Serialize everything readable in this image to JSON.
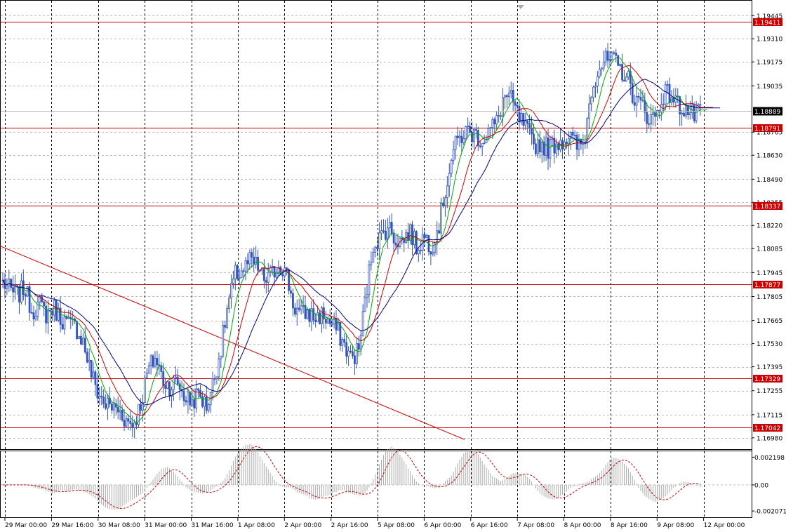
{
  "chart_data": [
    {
      "type": "candlestick",
      "panel": "price",
      "y_ticks": [
        "1.19445",
        "1.19310",
        "1.19175",
        "1.19035",
        "1.18765",
        "1.18630",
        "1.18490",
        "1.18355",
        "1.18220",
        "1.18085",
        "1.17945",
        "1.17805",
        "1.17665",
        "1.17530",
        "1.17395",
        "1.17255",
        "1.17115",
        "1.16980"
      ],
      "ylim": [
        1.1693,
        1.1952
      ],
      "x_ticks": [
        "29 Mar 00:00",
        "29 Mar 16:00",
        "30 Mar 08:00",
        "31 Mar 00:00",
        "31 Mar 16:00",
        "1 Apr 08:00",
        "2 Apr 00:00",
        "2 Apr 16:00",
        "5 Apr 08:00",
        "6 Apr 00:00",
        "6 Apr 16:00",
        "7 Apr 08:00",
        "8 Apr 00:00",
        "8 Apr 16:00",
        "9 Apr 08:00",
        "12 Apr 00:00"
      ],
      "current_price": "1.18889",
      "horizontal_levels": [
        "1.19411",
        "1.18791",
        "1.18337",
        "1.17877",
        "1.17329",
        "1.17042"
      ],
      "trendline": {
        "from": 1.181,
        "to": 1.1697
      },
      "series": [
        {
          "type": "candlestick",
          "color": "#3355bb",
          "anchors": [
            1.1789,
            1.1784,
            1.1781,
            1.1786,
            1.1772,
            1.1776,
            1.177,
            1.1774,
            1.1768,
            1.1764,
            1.1763,
            1.1755,
            1.1738,
            1.1725,
            1.1718,
            1.1716,
            1.1714,
            1.1708,
            1.1706,
            1.1718,
            1.1738,
            1.1745,
            1.1732,
            1.1728,
            1.1731,
            1.1722,
            1.1719,
            1.1724,
            1.1716,
            1.1731,
            1.175,
            1.1776,
            1.1793,
            1.1796,
            1.1801,
            1.1798,
            1.179,
            1.1793,
            1.18,
            1.1794,
            1.1775,
            1.177,
            1.1771,
            1.1768,
            1.177,
            1.1765,
            1.1761,
            1.1752,
            1.1744,
            1.175,
            1.1782,
            1.1812,
            1.1815,
            1.1822,
            1.1814,
            1.1813,
            1.1819,
            1.1809,
            1.1816,
            1.181,
            1.1822,
            1.1845,
            1.1866,
            1.1874,
            1.1877,
            1.1875,
            1.1872,
            1.1878,
            1.1882,
            1.1898,
            1.1895,
            1.1885,
            1.1878,
            1.1869,
            1.187,
            1.1867,
            1.187,
            1.1872,
            1.1874,
            1.1868,
            1.187,
            1.1902,
            1.1915,
            1.1918,
            1.1918,
            1.1913,
            1.1908,
            1.1895,
            1.1892,
            1.1884,
            1.1887,
            1.19,
            1.1898,
            1.1892,
            1.189,
            1.1886,
            1.1887
          ]
        },
        {
          "type": "line",
          "color": "#00aa00",
          "indicator": "moving-average-fast"
        },
        {
          "type": "line",
          "color": "#cc0000",
          "indicator": "moving-average-medium"
        },
        {
          "type": "line",
          "color": "#000088",
          "indicator": "moving-average-slow"
        }
      ]
    },
    {
      "type": "histogram",
      "panel": "oscillator",
      "y_ticks": [
        "0.002198",
        "0.00",
        "-0.002071"
      ],
      "ylim": [
        -0.0024,
        0.0025
      ],
      "signal_color": "#cc0000"
    }
  ]
}
